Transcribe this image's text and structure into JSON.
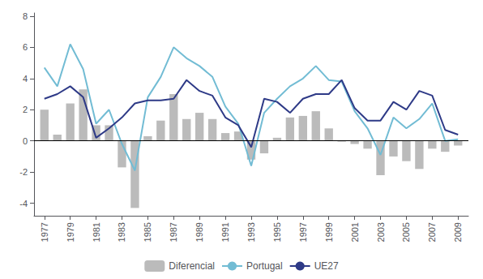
{
  "chart_data": {
    "type": "line",
    "x": [
      1977,
      1978,
      1979,
      1980,
      1981,
      1982,
      1983,
      1984,
      1985,
      1986,
      1987,
      1988,
      1989,
      1990,
      1991,
      1992,
      1993,
      1994,
      1995,
      1996,
      1997,
      1998,
      1999,
      2000,
      2001,
      2002,
      2003,
      2004,
      2005,
      2006,
      2007,
      2008,
      2009
    ],
    "series": [
      {
        "name": "Diferencial",
        "type": "bar",
        "color": "#BBBBBB",
        "values": [
          2.0,
          0.4,
          2.4,
          3.3,
          1.0,
          1.0,
          -1.7,
          -4.3,
          0.3,
          1.3,
          3.0,
          1.4,
          1.8,
          1.4,
          0.5,
          0.6,
          -1.2,
          -0.8,
          0.2,
          1.5,
          1.6,
          1.9,
          0.8,
          -0.05,
          -0.2,
          -0.5,
          -2.2,
          -1.0,
          -1.3,
          -1.8,
          -0.5,
          -0.7,
          -0.3
        ]
      },
      {
        "name": "Portugal",
        "type": "line",
        "color": "#72BCD4",
        "values": [
          4.7,
          3.5,
          6.2,
          4.6,
          1.1,
          2.0,
          -0.2,
          -1.9,
          2.8,
          4.1,
          6.0,
          5.3,
          4.8,
          4.1,
          2.2,
          1.1,
          -1.6,
          1.8,
          2.7,
          3.5,
          4.0,
          4.8,
          3.9,
          3.8,
          1.9,
          0.8,
          -0.9,
          1.5,
          0.8,
          1.4,
          2.4,
          0.0,
          0.1
        ]
      },
      {
        "name": "UE27",
        "type": "line",
        "color": "#2E3A87",
        "values": [
          2.7,
          3.0,
          3.5,
          2.8,
          0.2,
          0.8,
          1.5,
          2.4,
          2.6,
          2.6,
          2.7,
          3.9,
          3.2,
          2.9,
          1.5,
          1.0,
          -0.4,
          2.7,
          2.5,
          1.8,
          2.7,
          3.0,
          3.0,
          3.9,
          2.1,
          1.3,
          1.3,
          2.5,
          2.0,
          3.2,
          2.9,
          0.7,
          0.4
        ]
      }
    ],
    "xlim": [
      1976.2,
      2009.8
    ],
    "xticks": [
      1977,
      1979,
      1981,
      1983,
      1985,
      1987,
      1989,
      1991,
      1993,
      1995,
      1997,
      1999,
      2001,
      2003,
      2005,
      2007,
      2009
    ],
    "ylim": [
      -4.8,
      8.2
    ],
    "yticks": [
      -4,
      -2,
      0,
      2,
      4,
      6,
      8
    ],
    "grid": false,
    "legend": "bottom"
  }
}
